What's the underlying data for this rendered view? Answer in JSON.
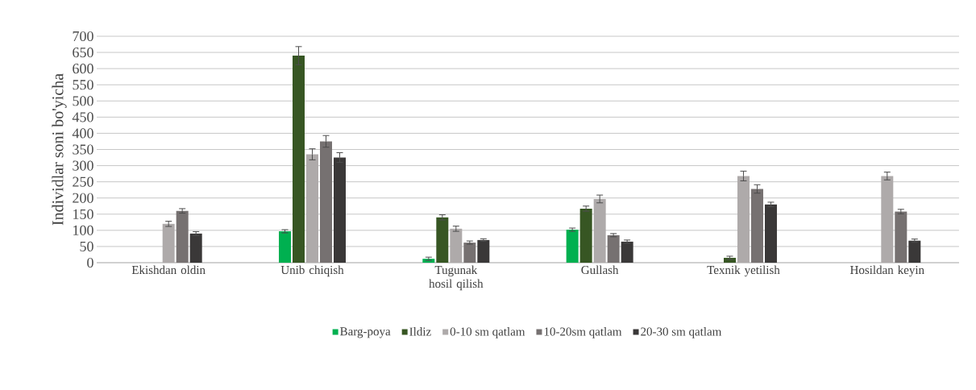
{
  "chart_data": {
    "type": "bar",
    "ylabel": "Individlar soni bo'yicha",
    "categories": [
      "Ekishdan oldin",
      "Unib chiqish",
      "Tugunak hosil qilish",
      "Gullash",
      "Texnik yetilish",
      "Hosildan keyin"
    ],
    "series": [
      {
        "name": "Barg-poya",
        "color": "#00b050",
        "values": [
          null,
          97,
          12,
          102,
          null,
          null
        ],
        "errors": [
          null,
          5,
          5,
          5,
          null,
          null
        ]
      },
      {
        "name": "Ildiz",
        "color": "#375623",
        "values": [
          null,
          640,
          140,
          167,
          15,
          null
        ],
        "errors": [
          null,
          28,
          8,
          8,
          5,
          null
        ]
      },
      {
        "name": "0-10 sm qatlam",
        "color": "#aeaaaa",
        "values": [
          120,
          335,
          105,
          197,
          268,
          268
        ],
        "errors": [
          8,
          17,
          8,
          12,
          15,
          12
        ]
      },
      {
        "name": "10-20sm qatlam",
        "color": "#767171",
        "values": [
          160,
          375,
          62,
          85,
          228,
          158
        ],
        "errors": [
          7,
          18,
          5,
          5,
          13,
          7
        ]
      },
      {
        "name": "20-30 sm qatlam",
        "color": "#3a3838",
        "values": [
          90,
          325,
          70,
          65,
          180,
          68
        ],
        "errors": [
          6,
          15,
          4,
          5,
          7,
          5
        ]
      }
    ],
    "ylim": [
      0,
      700
    ],
    "yticks": [
      0,
      50,
      100,
      150,
      200,
      250,
      300,
      350,
      400,
      450,
      500,
      550,
      600,
      650,
      700
    ],
    "grid": "y",
    "legend": "bottom"
  }
}
